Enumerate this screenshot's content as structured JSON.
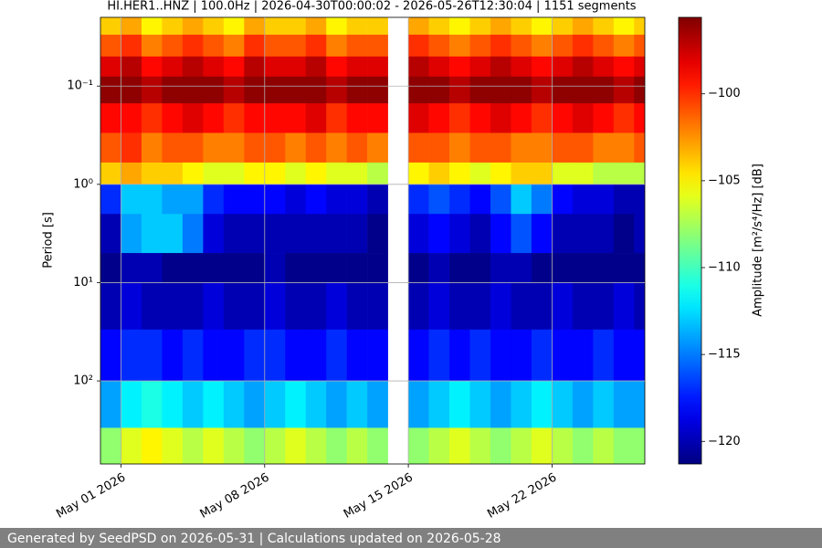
{
  "chart_data": {
    "type": "heatmap",
    "title": "HI.HER1..HNZ | 100.0Hz | 2026-04-30T00:00:02 - 2026-05-26T12:30:04 | 1151 segments",
    "y_label": "Period [s]",
    "colorbar_label": "Amplitude [m²/s⁴/Hz] [dB]",
    "colormap": "jet",
    "log_y": true,
    "y_inverted": true,
    "grid": true,
    "xlim": [
      "2026-04-30T00:00:02",
      "2026-05-26T12:30:04"
    ],
    "xticks": [
      {
        "value": "2026-05-01",
        "label": "May 01 2026"
      },
      {
        "value": "2026-05-08",
        "label": "May 08 2026"
      },
      {
        "value": "2026-05-15",
        "label": "May 15 2026"
      },
      {
        "value": "2026-05-22",
        "label": "May 22 2026"
      }
    ],
    "ylim": [
      0.02,
      700
    ],
    "yticks": [
      {
        "value": 0.1,
        "label": "10⁻¹"
      },
      {
        "value": 1,
        "label": "10⁰"
      },
      {
        "value": 10,
        "label": "10¹"
      },
      {
        "value": 100,
        "label": "10²"
      }
    ],
    "clim": [
      -121.3,
      -95.6
    ],
    "cticks": [
      {
        "value": -100,
        "label": "−100"
      },
      {
        "value": -105,
        "label": "−105"
      },
      {
        "value": -110,
        "label": "−110"
      },
      {
        "value": -115,
        "label": "−115"
      },
      {
        "value": -120,
        "label": "−120"
      }
    ],
    "x_bins": [
      "2026-04-30",
      "2026-05-01",
      "2026-05-02",
      "2026-05-03",
      "2026-05-04",
      "2026-05-05",
      "2026-05-06",
      "2026-05-07",
      "2026-05-08",
      "2026-05-09",
      "2026-05-10",
      "2026-05-11",
      "2026-05-12",
      "2026-05-13",
      "2026-05-14",
      "2026-05-15",
      "2026-05-16",
      "2026-05-17",
      "2026-05-18",
      "2026-05-19",
      "2026-05-20",
      "2026-05-21",
      "2026-05-22",
      "2026-05-23",
      "2026-05-24",
      "2026-05-25",
      "2026-05-26",
      "2026-05-27"
    ],
    "y_bins": [
      0.02,
      0.03,
      0.05,
      0.08,
      0.15,
      0.3,
      0.6,
      1,
      2,
      5,
      10,
      30,
      100,
      300,
      700
    ],
    "values": [
      [
        -104,
        -103,
        -105,
        -104,
        -103,
        -104,
        -105,
        -103,
        -104,
        -104,
        -103,
        -105,
        -104,
        -104,
        null,
        -103,
        -104,
        -105,
        -104,
        -103,
        -104,
        -105,
        -104,
        -103,
        -104,
        -105,
        -104
      ],
      [
        -101,
        -100,
        -102,
        -101,
        -100,
        -101,
        -102,
        -100,
        -101,
        -101,
        -100,
        -102,
        -101,
        -101,
        null,
        -100,
        -101,
        -102,
        -101,
        -100,
        -101,
        -102,
        -101,
        -100,
        -101,
        -102,
        -101
      ],
      [
        -98,
        -97,
        -99,
        -98,
        -97,
        -98,
        -99,
        -97,
        -98,
        -98,
        -97,
        -99,
        -98,
        -98,
        null,
        -97,
        -98,
        -99,
        -98,
        -97,
        -98,
        -99,
        -98,
        -97,
        -98,
        -99,
        -98
      ],
      [
        -96,
        -96,
        -97,
        -96,
        -96,
        -96,
        -97,
        -96,
        -96,
        -96,
        -96,
        -97,
        -96,
        -96,
        null,
        -96,
        -96,
        -97,
        -96,
        -96,
        -96,
        -97,
        -96,
        -96,
        -96,
        -97,
        -96
      ],
      [
        -99,
        -99,
        -100,
        -99,
        -98,
        -99,
        -100,
        -99,
        -99,
        -99,
        -98,
        -100,
        -99,
        -99,
        null,
        -98,
        -99,
        -100,
        -99,
        -98,
        -99,
        -100,
        -99,
        -98,
        -99,
        -100,
        -99
      ],
      [
        -101,
        -100,
        -102,
        -101,
        -101,
        -102,
        -102,
        -101,
        -101,
        -102,
        -101,
        -102,
        -101,
        -102,
        null,
        -101,
        -101,
        -102,
        -101,
        -101,
        -102,
        -102,
        -101,
        -101,
        -102,
        -102,
        -101
      ],
      [
        -104,
        -103,
        -104,
        -104,
        -105,
        -106,
        -106,
        -105,
        -105,
        -106,
        -105,
        -106,
        -106,
        -107,
        null,
        -105,
        -104,
        -105,
        -106,
        -105,
        -104,
        -104,
        -106,
        -106,
        -107,
        -107,
        -107
      ],
      [
        -117,
        -113,
        -113,
        -114,
        -114,
        -117,
        -118,
        -118,
        -118,
        -119,
        -118,
        -119,
        -119,
        -120,
        null,
        -117,
        -116,
        -117,
        -118,
        -116,
        -113,
        -115,
        -118,
        -119,
        -119,
        -120,
        -120
      ],
      [
        -120,
        -114,
        -113,
        -113,
        -115,
        -119,
        -120,
        -120,
        -120,
        -120,
        -120,
        -120,
        -120,
        -121,
        null,
        -119,
        -118,
        -119,
        -120,
        -118,
        -116,
        -118,
        -120,
        -120,
        -120,
        -121,
        -120
      ],
      [
        -121,
        -120,
        -120,
        -121,
        -121,
        -121,
        -121,
        -121,
        -120,
        -121,
        -121,
        -121,
        -121,
        -121,
        null,
        -121,
        -120,
        -121,
        -121,
        -120,
        -120,
        -121,
        -121,
        -121,
        -121,
        -121,
        -121
      ],
      [
        -120,
        -119,
        -120,
        -120,
        -120,
        -119,
        -120,
        -120,
        -119,
        -120,
        -120,
        -119,
        -120,
        -120,
        null,
        -120,
        -119,
        -120,
        -120,
        -119,
        -120,
        -120,
        -119,
        -120,
        -120,
        -119,
        -120
      ],
      [
        -118,
        -117,
        -117,
        -118,
        -117,
        -118,
        -118,
        -117,
        -117,
        -118,
        -118,
        -117,
        -118,
        -118,
        null,
        -118,
        -117,
        -118,
        -117,
        -118,
        -118,
        -117,
        -118,
        -118,
        -117,
        -118,
        -118
      ],
      [
        -114,
        -112,
        -111,
        -112,
        -113,
        -112,
        -113,
        -114,
        -113,
        -112,
        -113,
        -114,
        -113,
        -114,
        null,
        -114,
        -113,
        -112,
        -113,
        -114,
        -113,
        -112,
        -113,
        -114,
        -113,
        -114,
        -114
      ],
      [
        -108,
        -106,
        -105,
        -106,
        -107,
        -106,
        -107,
        -108,
        -107,
        -106,
        -107,
        -108,
        -107,
        -108,
        null,
        -108,
        -107,
        -106,
        -107,
        -108,
        -107,
        -106,
        -107,
        -108,
        -107,
        -108,
        -108
      ]
    ]
  },
  "footer": {
    "text": "Generated by SeedPSD on 2026-05-31 | Calculations updated on 2026-05-28"
  }
}
